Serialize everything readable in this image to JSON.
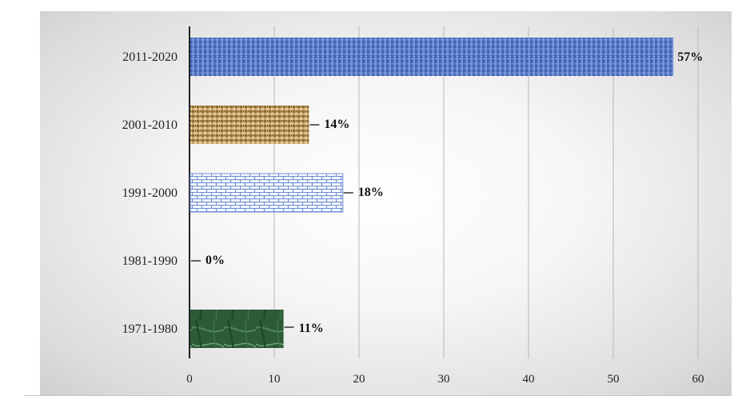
{
  "chart_data": {
    "type": "bar",
    "orientation": "horizontal",
    "categories": [
      "1971-1980",
      "1981-1990",
      "1991-2000",
      "2001-2010",
      "2011-2020"
    ],
    "values": [
      11,
      0,
      18,
      14,
      57
    ],
    "data_labels": [
      "11%",
      "0%",
      "18%",
      "14%",
      "57%"
    ],
    "xlim": [
      0,
      60
    ],
    "xticks": [
      0,
      10,
      20,
      30,
      40,
      50,
      60
    ],
    "grid": "vertical",
    "legend": "none",
    "title": "",
    "xlabel": "",
    "ylabel": "",
    "bar_textures": [
      "green-marble",
      "none",
      "blue-brick",
      "tan-burlap",
      "blue-canvas"
    ],
    "bar_colors": [
      "#2e5e3a",
      "#ffffff",
      "#6f8fd6",
      "#c29a5a",
      "#4f73c4"
    ]
  }
}
